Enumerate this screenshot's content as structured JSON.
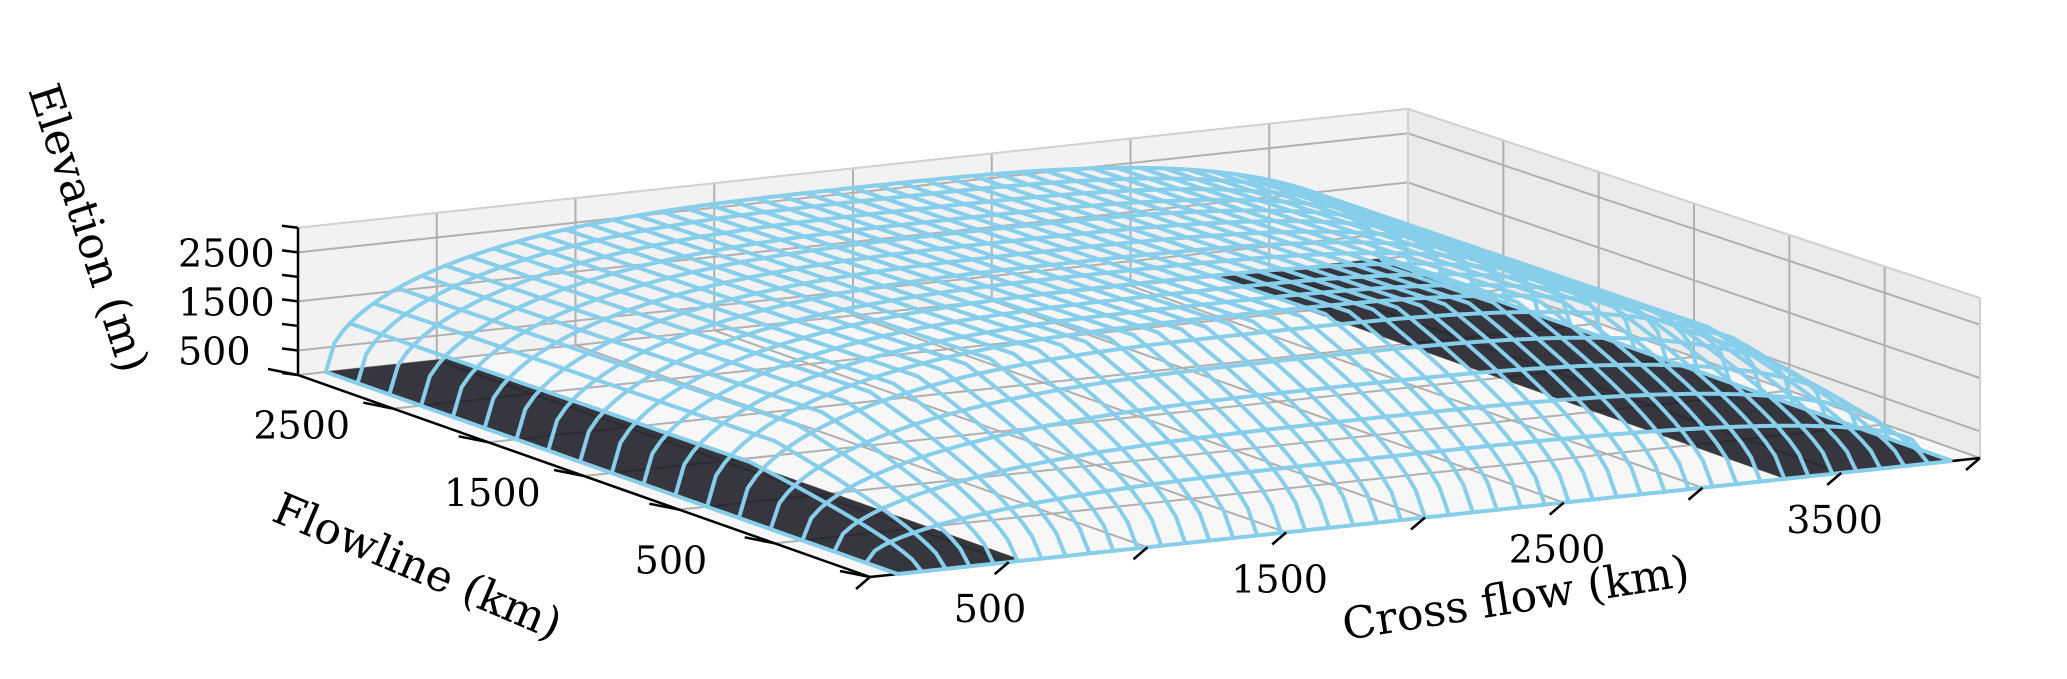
{
  "chart_data": {
    "type": "surface",
    "xlabel": "Cross flow (km)",
    "ylabel": "Flowline (km)",
    "zlabel": "Elevation (m)",
    "xticks": [
      500,
      1500,
      2500,
      3500
    ],
    "yticks": [
      500,
      1500,
      2500
    ],
    "zticks": [
      500,
      1500,
      2500
    ],
    "xlim": [
      0,
      4000
    ],
    "ylim": [
      0,
      3000
    ],
    "zlim": [
      0,
      3000
    ],
    "grid": true,
    "surface": {
      "shape": "ice-sheet",
      "x_extent": [
        100,
        3900
      ],
      "y_extent": [
        0,
        3000
      ],
      "peak_elevation": 2600,
      "wire_color": "#87ceeb"
    },
    "bed_strips": [
      {
        "x_range": [
          100,
          550
        ],
        "y_range": [
          0,
          3000
        ],
        "color": "#14141f"
      },
      {
        "x_range": [
          3300,
          3900
        ],
        "y_range": [
          0,
          3000
        ],
        "color": "#14141f"
      }
    ]
  }
}
